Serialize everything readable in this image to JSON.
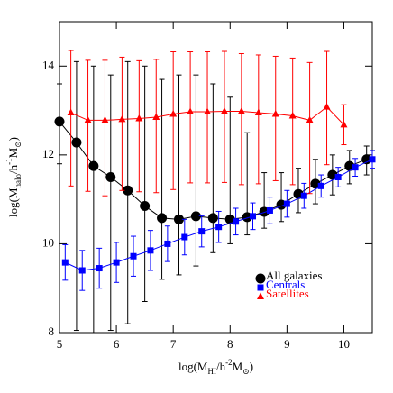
{
  "chart_data": {
    "type": "errorbar",
    "x_label": [
      {
        "text": "log(M"
      },
      {
        "text": "HI",
        "shift": "sub"
      },
      {
        "text": "/h"
      },
      {
        "text": "-2",
        "shift": "super"
      },
      {
        "text": "M"
      },
      {
        "text": "⊙",
        "shift": "sub"
      },
      {
        "text": ")"
      }
    ],
    "y_label": [
      {
        "text": "log(M"
      },
      {
        "text": "halo",
        "shift": "sub"
      },
      {
        "text": "/h"
      },
      {
        "text": "-1",
        "shift": "super"
      },
      {
        "text": "M"
      },
      {
        "text": "⊙",
        "shift": "sub"
      },
      {
        "text": ")"
      }
    ],
    "xlim": [
      5,
      10.5
    ],
    "ylim": [
      8,
      15
    ],
    "xticks": [
      5,
      6,
      7,
      8,
      9,
      10
    ],
    "yticks": [
      8,
      10,
      12,
      14
    ],
    "legend": "lower right",
    "series": [
      {
        "name": "All galaxies",
        "color": "#000000",
        "marker": "circle",
        "x": [
          5.0,
          5.3,
          5.6,
          5.9,
          6.2,
          6.5,
          6.8,
          7.1,
          7.4,
          7.7,
          8.0,
          8.3,
          8.6,
          8.9,
          9.2,
          9.5,
          9.8,
          10.1,
          10.4
        ],
        "values": [
          12.75,
          12.28,
          11.75,
          11.5,
          11.2,
          10.85,
          10.58,
          10.55,
          10.62,
          10.58,
          10.55,
          10.6,
          10.72,
          10.88,
          11.12,
          11.35,
          11.55,
          11.75,
          11.9
        ],
        "err_minus": [
          0.95,
          4.23,
          3.75,
          3.45,
          3.0,
          2.15,
          1.38,
          1.25,
          1.12,
          0.78,
          0.55,
          0.4,
          0.37,
          0.38,
          0.42,
          0.45,
          0.45,
          0.4,
          0.35
        ],
        "err_plus": [
          0.85,
          1.82,
          2.25,
          2.3,
          2.9,
          3.15,
          3.12,
          3.25,
          3.18,
          3.02,
          2.75,
          1.9,
          0.88,
          0.72,
          0.58,
          0.55,
          0.45,
          0.35,
          0.3
        ]
      },
      {
        "name": "Centrals",
        "color": "#0000ff",
        "marker": "square",
        "x": [
          5.1,
          5.4,
          5.7,
          6.0,
          6.3,
          6.6,
          6.9,
          7.2,
          7.5,
          7.8,
          8.1,
          8.4,
          8.7,
          9.0,
          9.3,
          9.6,
          9.9,
          10.2,
          10.5
        ],
        "values": [
          9.58,
          9.4,
          9.45,
          9.58,
          9.72,
          9.85,
          10.0,
          10.15,
          10.28,
          10.38,
          10.5,
          10.62,
          10.75,
          10.9,
          11.08,
          11.3,
          11.5,
          11.72,
          11.9
        ],
        "err_minus": [
          0.4,
          0.45,
          0.45,
          0.45,
          0.45,
          0.45,
          0.4,
          0.4,
          0.35,
          0.35,
          0.3,
          0.3,
          0.3,
          0.3,
          0.28,
          0.25,
          0.22,
          0.2,
          0.2
        ],
        "err_plus": [
          0.4,
          0.45,
          0.45,
          0.45,
          0.45,
          0.45,
          0.4,
          0.4,
          0.35,
          0.35,
          0.3,
          0.3,
          0.3,
          0.3,
          0.28,
          0.25,
          0.22,
          0.2,
          0.2
        ]
      },
      {
        "name": "Satellites",
        "color": "#ff0000",
        "marker": "triangle",
        "x": [
          5.2,
          5.5,
          5.8,
          6.1,
          6.4,
          6.7,
          7.0,
          7.3,
          7.6,
          7.9,
          8.2,
          8.5,
          8.8,
          9.1,
          9.4,
          9.7,
          10.0
        ],
        "values": [
          12.95,
          12.78,
          12.78,
          12.8,
          12.82,
          12.85,
          12.92,
          12.97,
          12.97,
          12.98,
          12.98,
          12.95,
          12.92,
          12.88,
          12.78,
          13.08,
          12.68
        ],
        "err_minus": [
          1.65,
          1.6,
          1.7,
          1.6,
          1.65,
          1.7,
          1.7,
          1.6,
          1.6,
          1.6,
          1.65,
          1.6,
          1.5,
          1.55,
          1.65,
          1.3,
          0.45
        ],
        "err_plus": [
          1.4,
          1.35,
          1.35,
          1.4,
          1.3,
          1.3,
          1.4,
          1.35,
          1.35,
          1.35,
          1.3,
          1.3,
          1.3,
          1.3,
          1.3,
          1.25,
          0.45
        ]
      }
    ]
  }
}
